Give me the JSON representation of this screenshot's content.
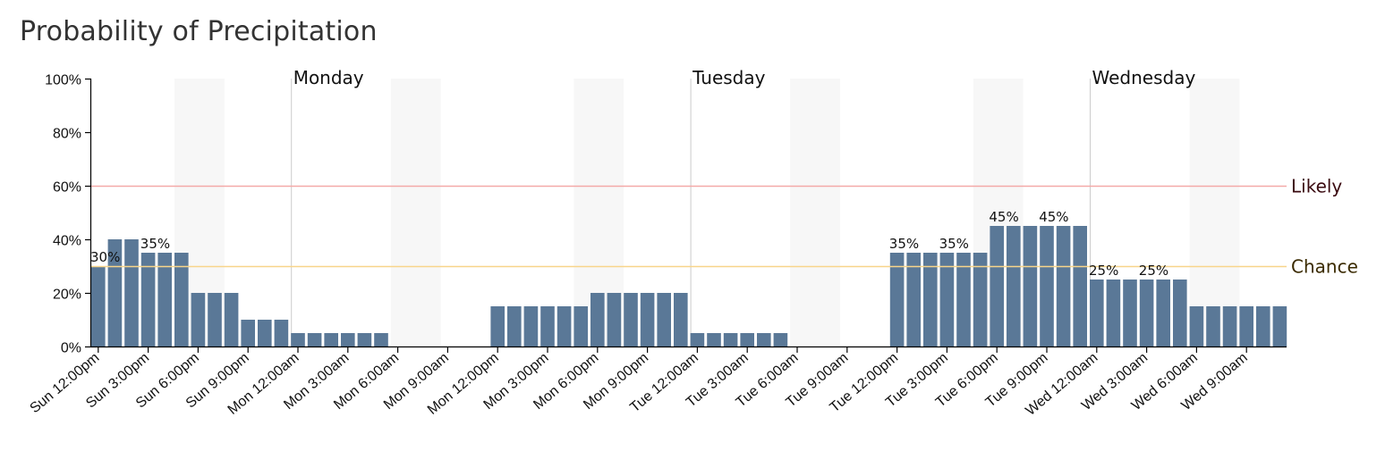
{
  "chart_data": {
    "type": "bar",
    "title": "Probability of Precipitation",
    "ylim": [
      0,
      100
    ],
    "y_ticks": [
      0,
      20,
      40,
      60,
      80,
      100
    ],
    "y_tick_suffix": "%",
    "x_tick_labels": [
      "Sun 12:00pm",
      "Sun 3:00pm",
      "Sun 6:00pm",
      "Sun 9:00pm",
      "Mon 12:00am",
      "Mon 3:00am",
      "Mon 6:00am",
      "Mon 9:00am",
      "Mon 12:00pm",
      "Mon 3:00pm",
      "Mon 6:00pm",
      "Mon 9:00pm",
      "Tue 12:00am",
      "Tue 3:00am",
      "Tue 6:00am",
      "Tue 9:00am",
      "Tue 12:00pm",
      "Tue 3:00pm",
      "Tue 6:00pm",
      "Tue 9:00pm",
      "Wed 12:00am",
      "Wed 3:00am",
      "Wed 6:00am",
      "Wed 9:00am"
    ],
    "values": [
      30,
      40,
      40,
      35,
      35,
      35,
      20,
      20,
      20,
      10,
      10,
      10,
      5,
      5,
      5,
      5,
      5,
      5,
      0,
      0,
      0,
      0,
      0,
      0,
      15,
      15,
      15,
      15,
      15,
      15,
      20,
      20,
      20,
      20,
      20,
      20,
      5,
      5,
      5,
      5,
      5,
      5,
      0,
      0,
      0,
      0,
      0,
      0,
      35,
      35,
      35,
      35,
      35,
      35,
      45,
      45,
      45,
      45,
      45,
      45,
      25,
      25,
      25,
      25,
      25,
      25,
      15,
      15,
      15,
      15,
      15,
      15
    ],
    "bar_labels": [
      {
        "index": 0,
        "text": "30%"
      },
      {
        "index": 3,
        "text": "35%"
      },
      {
        "index": 48,
        "text": "35%"
      },
      {
        "index": 51,
        "text": "35%"
      },
      {
        "index": 54,
        "text": "45%"
      },
      {
        "index": 57,
        "text": "45%"
      },
      {
        "index": 60,
        "text": "25%"
      },
      {
        "index": 63,
        "text": "25%"
      }
    ],
    "day_markers": [
      {
        "label": "Monday",
        "index": 12
      },
      {
        "label": "Tuesday",
        "index": 36
      },
      {
        "label": "Wednesday",
        "index": 60
      }
    ],
    "thresholds": [
      {
        "label": "Likely",
        "value": 60,
        "color": "#f4a9a8",
        "text_color": "#3a0a10"
      },
      {
        "label": "Chance",
        "value": 30,
        "color": "#f8d58a",
        "text_color": "#3a2a00"
      }
    ],
    "night_bands": [
      [
        5,
        8
      ],
      [
        18,
        21
      ],
      [
        29,
        32
      ],
      [
        42,
        45
      ],
      [
        53,
        56
      ],
      [
        66,
        69
      ]
    ],
    "bar_color": "#5a7897",
    "band_color": "#f7f7f7",
    "grid": false,
    "legend": "none"
  }
}
